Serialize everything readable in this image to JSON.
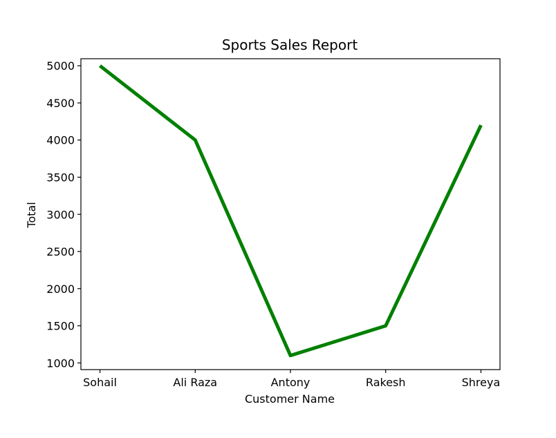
{
  "chart_data": {
    "type": "line",
    "title": "Sports Sales Report",
    "xlabel": "Customer Name",
    "ylabel": "Total",
    "categories": [
      "Sohail",
      "Ali Raza",
      "Antony",
      "Rakesh",
      "Shreya"
    ],
    "series": [
      {
        "values": [
          5000,
          4000,
          1100,
          1500,
          4200
        ],
        "color": "#008000"
      }
    ],
    "yticks": [
      1000,
      1500,
      2000,
      2500,
      3000,
      3500,
      4000,
      4500,
      5000
    ],
    "ylim": [
      910,
      5095
    ],
    "grid": false,
    "legend": "none"
  }
}
